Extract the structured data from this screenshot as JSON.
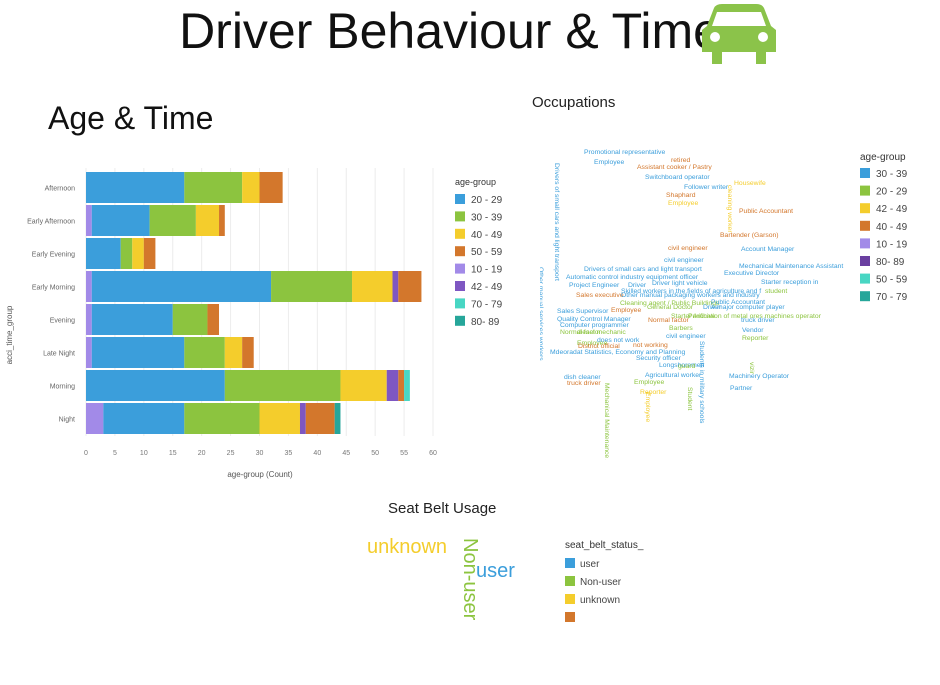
{
  "header": {
    "title": "Driver Behaviour & Time",
    "icon": "car-icon",
    "icon_color": "#8bc34a"
  },
  "colors": {
    "20 - 29": "#3b9edb",
    "30 - 39": "#3b9edb",
    "30 - 39_alt": "#8cc43f",
    "40 - 49": "#f4cd2c",
    "50 - 59": "#d3772c",
    "10 - 19": "#a28ae8",
    "42 - 49": "#7e57c2",
    "70 - 79": "#48d6c3",
    "80- 89": "#26a69a",
    "80- 89_b": "#6a3fa0",
    "50 - 59_b": "#48d6c3",
    "70 - 79_b": "#26a69a"
  },
  "chart_data": [
    {
      "type": "bar",
      "orientation": "horizontal",
      "stacked": true,
      "title": "Age & Time",
      "xlabel": "age-group (Count)",
      "ylabel": "acci_time_group",
      "xlim": [
        0,
        60
      ],
      "xticks": [
        "0",
        "5",
        "10",
        "15",
        "20",
        "25",
        "30",
        "35",
        "40",
        "45",
        "50",
        "55",
        "60"
      ],
      "categories": [
        "Afternoon",
        "Early Afternoon",
        "Early Evening",
        "Early Morning",
        "Evening",
        "Late Night",
        "Morning",
        "Night"
      ],
      "legend_title": "age-group",
      "legend_position": "right",
      "legend": [
        "20 - 29",
        "30 - 39",
        "40 - 49",
        "50 - 59",
        "10 - 19",
        "42 - 49",
        "70 - 79",
        "80- 89"
      ],
      "series": [
        {
          "name": "10 - 19",
          "color": "#a28ae8",
          "values": [
            0,
            1,
            0,
            1,
            1,
            1,
            0,
            3
          ]
        },
        {
          "name": "20 - 29",
          "color": "#3b9edb",
          "values": [
            17,
            10,
            6,
            31,
            14,
            16,
            24,
            14
          ]
        },
        {
          "name": "30 - 39",
          "color": "#8cc43f",
          "values": [
            10,
            8,
            2,
            14,
            6,
            7,
            20,
            13
          ]
        },
        {
          "name": "40 - 49",
          "color": "#f4cd2c",
          "values": [
            3,
            4,
            2,
            7,
            0,
            3,
            8,
            7
          ]
        },
        {
          "name": "42 - 49",
          "color": "#7e57c2",
          "values": [
            0,
            0,
            0,
            1,
            0,
            0,
            2,
            1
          ]
        },
        {
          "name": "50 - 59",
          "color": "#d3772c",
          "values": [
            4,
            1,
            2,
            4,
            2,
            2,
            1,
            5
          ]
        },
        {
          "name": "70 - 79",
          "color": "#48d6c3",
          "values": [
            0,
            0,
            0,
            0,
            0,
            0,
            1,
            0
          ]
        },
        {
          "name": "80- 89",
          "color": "#26a69a",
          "values": [
            0,
            0,
            0,
            0,
            0,
            0,
            0,
            1
          ]
        }
      ]
    }
  ],
  "occupations": {
    "title": "Occupations",
    "legend_title": "age-group",
    "legend": [
      {
        "label": "30 - 39",
        "color": "#3b9edb"
      },
      {
        "label": "20 - 29",
        "color": "#8cc43f"
      },
      {
        "label": "42 - 49",
        "color": "#f4cd2c"
      },
      {
        "label": "40 - 49",
        "color": "#d3772c"
      },
      {
        "label": "10 - 19",
        "color": "#a28ae8"
      },
      {
        "label": "80- 89",
        "color": "#6a3fa0"
      },
      {
        "label": "50 - 59",
        "color": "#48d6c3"
      },
      {
        "label": "70 - 79",
        "color": "#26a69a"
      }
    ],
    "words": [
      {
        "text": "Promotional representative",
        "color": "#3b9edb"
      },
      {
        "text": "Employee",
        "color": "#3b9edb"
      },
      {
        "text": "retired",
        "color": "#d3772c"
      },
      {
        "text": "Assistant cooker / Pastry",
        "color": "#d3772c"
      },
      {
        "text": "Switchboard operator",
        "color": "#3b9edb"
      },
      {
        "text": "Follower writer",
        "color": "#3b9edb"
      },
      {
        "text": "Housewife",
        "color": "#f4cd2c"
      },
      {
        "text": "Shaphard",
        "color": "#d3772c"
      },
      {
        "text": "Employee",
        "color": "#f4cd2c"
      },
      {
        "text": "Public Accountant",
        "color": "#d3772c"
      },
      {
        "text": "civil engineer",
        "color": "#d3772c"
      },
      {
        "text": "Account Manager",
        "color": "#3b9edb"
      },
      {
        "text": "Bartender (Garson)",
        "color": "#d3772c"
      },
      {
        "text": "civil engineer",
        "color": "#3b9edb"
      },
      {
        "text": "Mechanical Maintenance Assistant",
        "color": "#3b9edb"
      },
      {
        "text": "Drivers of small cars and light transport",
        "color": "#3b9edb"
      },
      {
        "text": "Executive Director",
        "color": "#3b9edb"
      },
      {
        "text": "Automatic control industry equipment officer",
        "color": "#3b9edb"
      },
      {
        "text": "Starter reception in",
        "color": "#3b9edb"
      },
      {
        "text": "Project Engineer",
        "color": "#3b9edb"
      },
      {
        "text": "Driver",
        "color": "#3b9edb"
      },
      {
        "text": "Driver light vehicle",
        "color": "#3b9edb"
      },
      {
        "text": "student",
        "color": "#8cc43f"
      },
      {
        "text": "Skilled workers in the fields of agriculture and f",
        "color": "#3b9edb"
      },
      {
        "text": "Sales executive",
        "color": "#d3772c"
      },
      {
        "text": "Other manual packaging workers and industry",
        "color": "#3b9edb"
      },
      {
        "text": "Cleaning agent / Public Buildings",
        "color": "#8cc43f"
      },
      {
        "text": "Public Accountant",
        "color": "#3b9edb"
      },
      {
        "text": "Sales Supervisor",
        "color": "#3b9edb"
      },
      {
        "text": "Employee",
        "color": "#d3772c"
      },
      {
        "text": "General Doctor",
        "color": "#8cc43f"
      },
      {
        "text": "Driver",
        "color": "#3b9edb"
      },
      {
        "text": "A major computer player",
        "color": "#3b9edb"
      },
      {
        "text": "Quality Control Manager",
        "color": "#3b9edb"
      },
      {
        "text": "Starter Archive",
        "color": "#8cc43f"
      },
      {
        "text": "Purification of metal ores machines operator",
        "color": "#8cc43f"
      },
      {
        "text": "Computer programmer",
        "color": "#3b9edb"
      },
      {
        "text": "Normal factor",
        "color": "#8cc43f"
      },
      {
        "text": "truck driver",
        "color": "#3b9edb"
      },
      {
        "text": "Normal factor",
        "color": "#d3772c"
      },
      {
        "text": "diesel mechanic",
        "color": "#8cc43f"
      },
      {
        "text": "Barbers",
        "color": "#8cc43f"
      },
      {
        "text": "Vendor",
        "color": "#3b9edb"
      },
      {
        "text": "does not work",
        "color": "#3b9edb"
      },
      {
        "text": "civil engineer",
        "color": "#3b9edb"
      },
      {
        "text": "Reporter",
        "color": "#8cc43f"
      },
      {
        "text": "Employee",
        "color": "#8cc43f"
      },
      {
        "text": "District official",
        "color": "#d3772c"
      },
      {
        "text": "not working",
        "color": "#d3772c"
      },
      {
        "text": "Mdeoradat Statistics, Economy and Planning",
        "color": "#3b9edb"
      },
      {
        "text": "Security officer",
        "color": "#3b9edb"
      },
      {
        "text": "Longshoremen",
        "color": "#3b9edb"
      },
      {
        "text": "guard",
        "color": "#8cc43f"
      },
      {
        "text": "Agricultural worker",
        "color": "#3b9edb"
      },
      {
        "text": "Machinery Operator",
        "color": "#3b9edb"
      },
      {
        "text": "dish cleaner",
        "color": "#3b9edb"
      },
      {
        "text": "Employee",
        "color": "#8cc43f"
      },
      {
        "text": "truck driver",
        "color": "#d3772c"
      },
      {
        "text": "Partner",
        "color": "#3b9edb"
      },
      {
        "text": "Reporter",
        "color": "#f4cd2c"
      },
      {
        "text": "cleaning worker",
        "color": "#f4cd2c"
      },
      {
        "text": "Drivers of small cars and light transport",
        "color": "#3b9edb"
      },
      {
        "text": "Other manual services workers",
        "color": "#3b9edb"
      },
      {
        "text": "Architect",
        "color": "#d3772c"
      },
      {
        "text": "vizir",
        "color": "#8cc43f"
      },
      {
        "text": "Mechanical Maintenance Assistant",
        "color": "#8cc43f"
      },
      {
        "text": "Students in military schools",
        "color": "#3b9edb"
      },
      {
        "text": "Employee",
        "color": "#f4cd2c"
      },
      {
        "text": "Student",
        "color": "#8cc43f"
      }
    ]
  },
  "seat_belt": {
    "title": "Seat Belt Usage",
    "legend_title": "seat_belt_status_",
    "legend": [
      {
        "label": "user",
        "color": "#3b9edb"
      },
      {
        "label": "Non-user",
        "color": "#8cc43f"
      },
      {
        "label": "unknown",
        "color": "#f4cd2c"
      },
      {
        "label": "",
        "color": "#d3772c"
      }
    ],
    "words": [
      {
        "text": "unknown",
        "color": "#f4cd2c"
      },
      {
        "text": "Non-user",
        "color": "#8cc43f"
      },
      {
        "text": "user",
        "color": "#3b9edb"
      }
    ]
  }
}
